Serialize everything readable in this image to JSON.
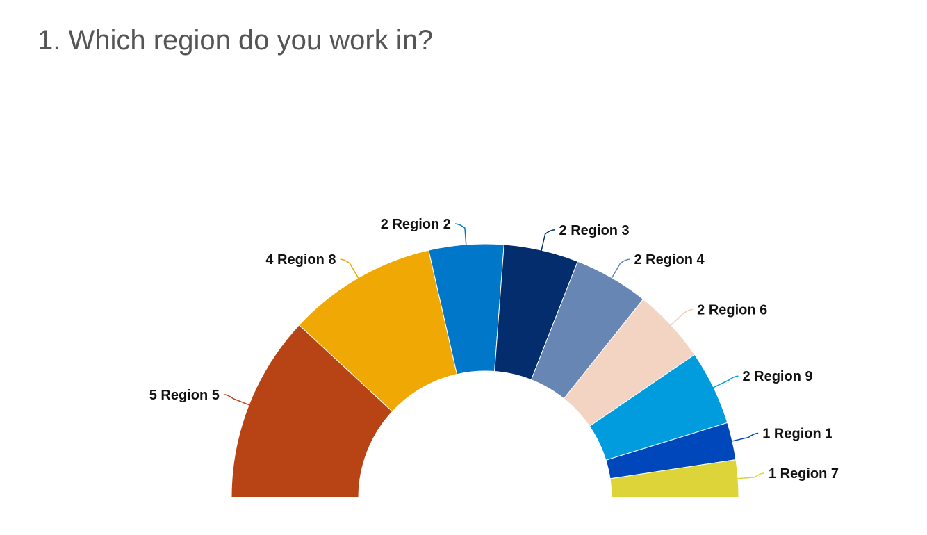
{
  "question": {
    "title": "1. Which region do you work in?"
  },
  "chart_data": {
    "type": "pie",
    "variant": "semi-donut",
    "title": "1. Which region do you work in?",
    "slices": [
      {
        "label": "Region 5",
        "value": 5,
        "color": "#B84416"
      },
      {
        "label": "Region 8",
        "value": 4,
        "color": "#F0A804"
      },
      {
        "label": "Region 2",
        "value": 2,
        "color": "#0077C8"
      },
      {
        "label": "Region 3",
        "value": 2,
        "color": "#032D6D"
      },
      {
        "label": "Region 4",
        "value": 2,
        "color": "#6886B4"
      },
      {
        "label": "Region 6",
        "value": 2,
        "color": "#F3D4C3"
      },
      {
        "label": "Region 9",
        "value": 2,
        "color": "#009CDE"
      },
      {
        "label": "Region 1",
        "value": 1,
        "color": "#0047BB"
      },
      {
        "label": "Region 7",
        "value": 1,
        "color": "#DDD43A"
      }
    ],
    "legend": "none",
    "data_labels": "outside, value followed by label"
  }
}
